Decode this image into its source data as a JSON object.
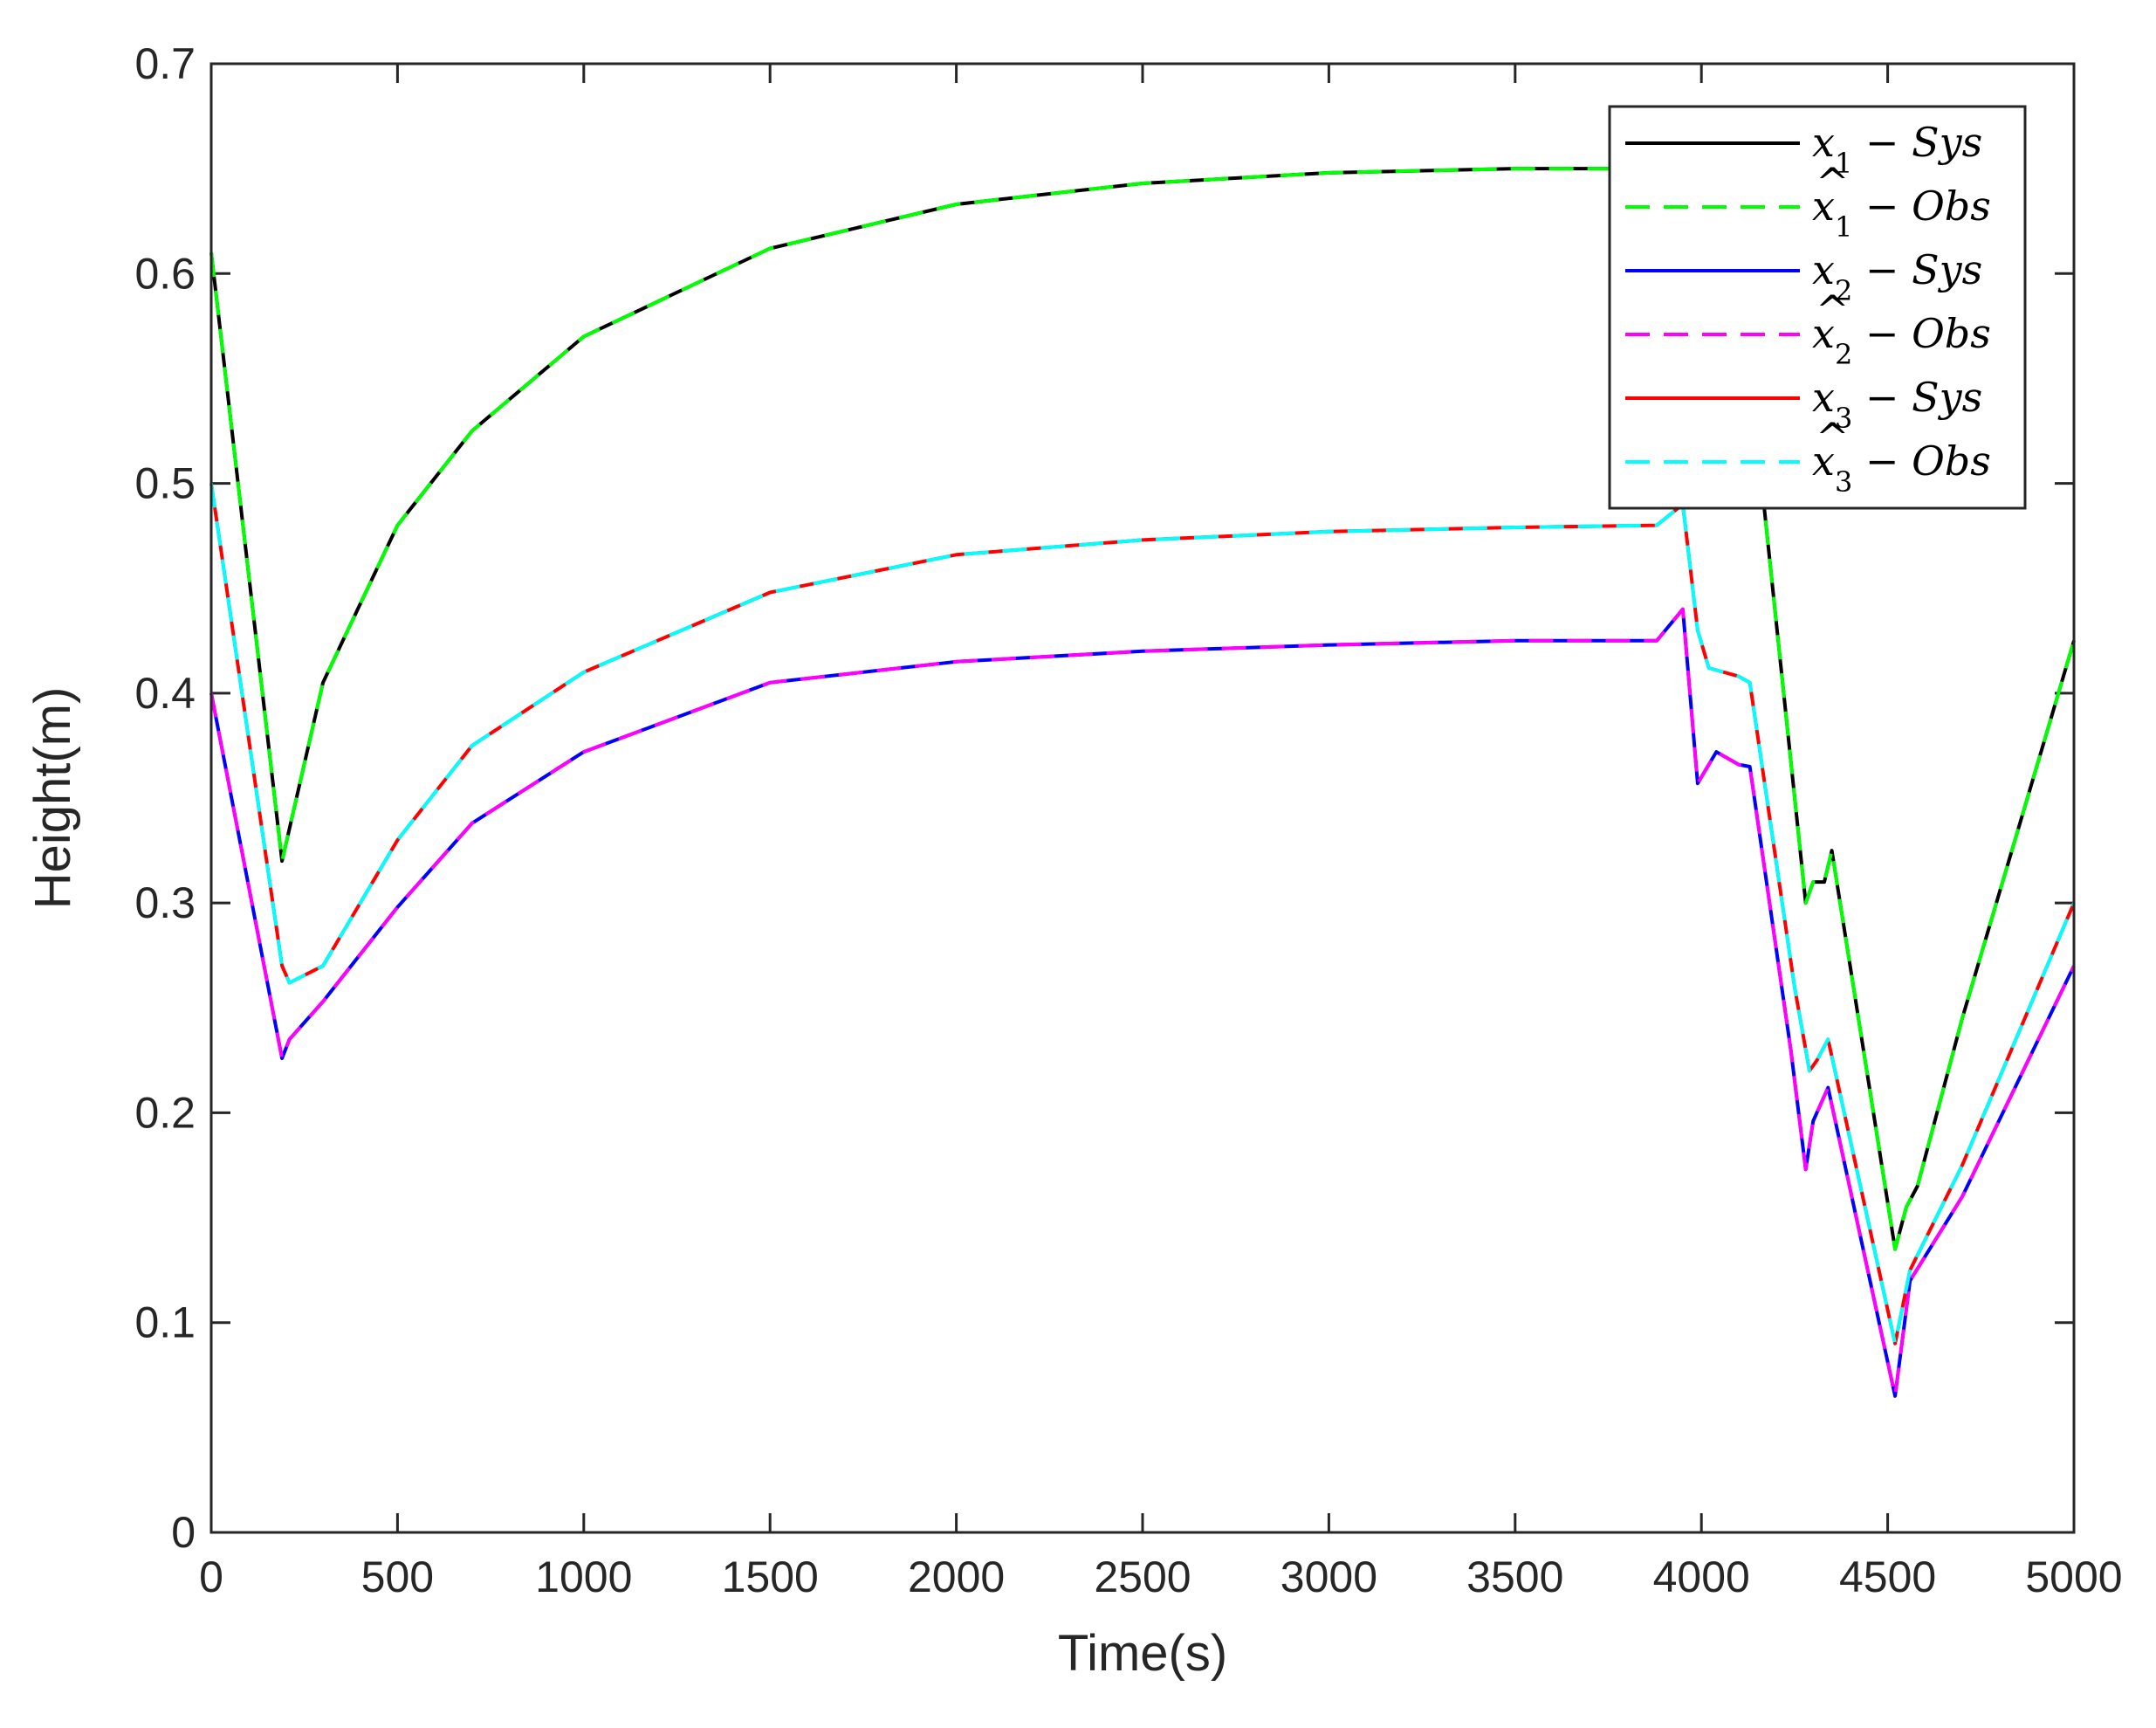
{
  "chart_data": {
    "type": "line",
    "xlabel": "Time(s)",
    "ylabel": "Height(m)",
    "xlim": [
      0,
      5000
    ],
    "ylim": [
      0,
      0.7
    ],
    "xticks": [
      0,
      500,
      1000,
      1500,
      2000,
      2500,
      3000,
      3500,
      4000,
      4500,
      5000
    ],
    "yticks": [
      0,
      0.1,
      0.2,
      0.3,
      0.4,
      0.5,
      0.6,
      0.7
    ],
    "xtick_labels": [
      "0",
      "500",
      "1000",
      "1500",
      "2000",
      "2500",
      "3000",
      "3500",
      "4000",
      "4500",
      "5000"
    ],
    "ytick_labels": [
      "0",
      "0.1",
      "0.2",
      "0.3",
      "0.4",
      "0.5",
      "0.6",
      "0.7"
    ],
    "grid": false,
    "legend_position": "top-right",
    "series": [
      {
        "name": "x1 − Sys",
        "name_main": "x",
        "name_hat": false,
        "name_sub": "1",
        "name_rest": " − Sys",
        "color": "#000000",
        "style": "solid",
        "x": [
          0,
          190,
          300,
          500,
          700,
          1000,
          1500,
          2000,
          2500,
          3000,
          3500,
          3900,
          3950,
          4000,
          4100,
          4150,
          4280,
          4300,
          4330,
          4350,
          4520,
          4550,
          4580,
          4700,
          5000
        ],
        "y": [
          0.61,
          0.32,
          0.405,
          0.48,
          0.525,
          0.57,
          0.612,
          0.633,
          0.643,
          0.648,
          0.65,
          0.65,
          0.65,
          0.62,
          0.53,
          0.52,
          0.3,
          0.31,
          0.31,
          0.325,
          0.135,
          0.155,
          0.165,
          0.245,
          0.425
        ]
      },
      {
        "name": "x̂1 − Obs",
        "name_main": "x",
        "name_hat": true,
        "name_sub": "1",
        "name_rest": " − Obs",
        "color": "#00ff00",
        "style": "dashed",
        "x": [
          0,
          190,
          300,
          500,
          700,
          1000,
          1500,
          2000,
          2500,
          3000,
          3500,
          3900,
          3950,
          4000,
          4100,
          4150,
          4280,
          4300,
          4330,
          4350,
          4520,
          4550,
          4580,
          4700,
          5000
        ],
        "y": [
          0.61,
          0.32,
          0.405,
          0.48,
          0.525,
          0.57,
          0.612,
          0.633,
          0.643,
          0.648,
          0.65,
          0.65,
          0.65,
          0.62,
          0.53,
          0.52,
          0.3,
          0.31,
          0.31,
          0.325,
          0.135,
          0.155,
          0.165,
          0.245,
          0.425
        ]
      },
      {
        "name": "x2 − Sys",
        "name_main": "x",
        "name_hat": false,
        "name_sub": "2",
        "name_rest": " − Sys",
        "color": "#0000ff",
        "style": "solid",
        "x": [
          0,
          190,
          210,
          300,
          500,
          700,
          1000,
          1500,
          2000,
          2500,
          3000,
          3500,
          3880,
          3950,
          3990,
          4040,
          4100,
          4130,
          4240,
          4280,
          4300,
          4340,
          4520,
          4560,
          4700,
          5000
        ],
        "y": [
          0.4,
          0.226,
          0.235,
          0.253,
          0.298,
          0.338,
          0.372,
          0.405,
          0.415,
          0.42,
          0.423,
          0.425,
          0.425,
          0.44,
          0.357,
          0.372,
          0.366,
          0.365,
          0.23,
          0.173,
          0.196,
          0.212,
          0.065,
          0.12,
          0.16,
          0.27
        ]
      },
      {
        "name": "x̂2 − Obs",
        "name_main": "x",
        "name_hat": true,
        "name_sub": "2",
        "name_rest": " − Obs",
        "color": "#ff00ff",
        "style": "dashed",
        "x": [
          0,
          190,
          210,
          300,
          500,
          700,
          1000,
          1500,
          2000,
          2500,
          3000,
          3500,
          3880,
          3950,
          3990,
          4040,
          4100,
          4130,
          4240,
          4280,
          4300,
          4340,
          4520,
          4560,
          4700,
          5000
        ],
        "y": [
          0.4,
          0.226,
          0.235,
          0.253,
          0.298,
          0.338,
          0.372,
          0.405,
          0.415,
          0.42,
          0.423,
          0.425,
          0.425,
          0.44,
          0.357,
          0.372,
          0.366,
          0.365,
          0.23,
          0.173,
          0.196,
          0.212,
          0.065,
          0.12,
          0.16,
          0.27
        ]
      },
      {
        "name": "x3 − Sys",
        "name_main": "x",
        "name_hat": false,
        "name_sub": "3",
        "name_rest": " − Sys",
        "color": "#ff0000",
        "style": "solid",
        "x": [
          0,
          190,
          210,
          300,
          500,
          700,
          1000,
          1500,
          2000,
          2500,
          3000,
          3500,
          3880,
          3950,
          3990,
          4020,
          4100,
          4130,
          4250,
          4290,
          4310,
          4340,
          4520,
          4560,
          4700,
          5000
        ],
        "y": [
          0.5,
          0.27,
          0.262,
          0.27,
          0.33,
          0.375,
          0.41,
          0.448,
          0.466,
          0.473,
          0.477,
          0.479,
          0.48,
          0.49,
          0.43,
          0.412,
          0.408,
          0.405,
          0.26,
          0.22,
          0.225,
          0.235,
          0.09,
          0.125,
          0.175,
          0.3
        ]
      },
      {
        "name": "x̂3 − Obs",
        "name_main": "x",
        "name_hat": true,
        "name_sub": "3",
        "name_rest": " − Obs",
        "color": "#00ffff",
        "style": "dashed",
        "x": [
          0,
          190,
          210,
          300,
          500,
          700,
          1000,
          1500,
          2000,
          2500,
          3000,
          3500,
          3880,
          3950,
          3990,
          4020,
          4100,
          4130,
          4250,
          4290,
          4310,
          4340,
          4520,
          4560,
          4700,
          5000
        ],
        "y": [
          0.5,
          0.27,
          0.262,
          0.27,
          0.33,
          0.375,
          0.41,
          0.448,
          0.466,
          0.473,
          0.477,
          0.479,
          0.48,
          0.49,
          0.43,
          0.412,
          0.408,
          0.405,
          0.26,
          0.22,
          0.225,
          0.235,
          0.09,
          0.125,
          0.175,
          0.3
        ]
      }
    ]
  }
}
